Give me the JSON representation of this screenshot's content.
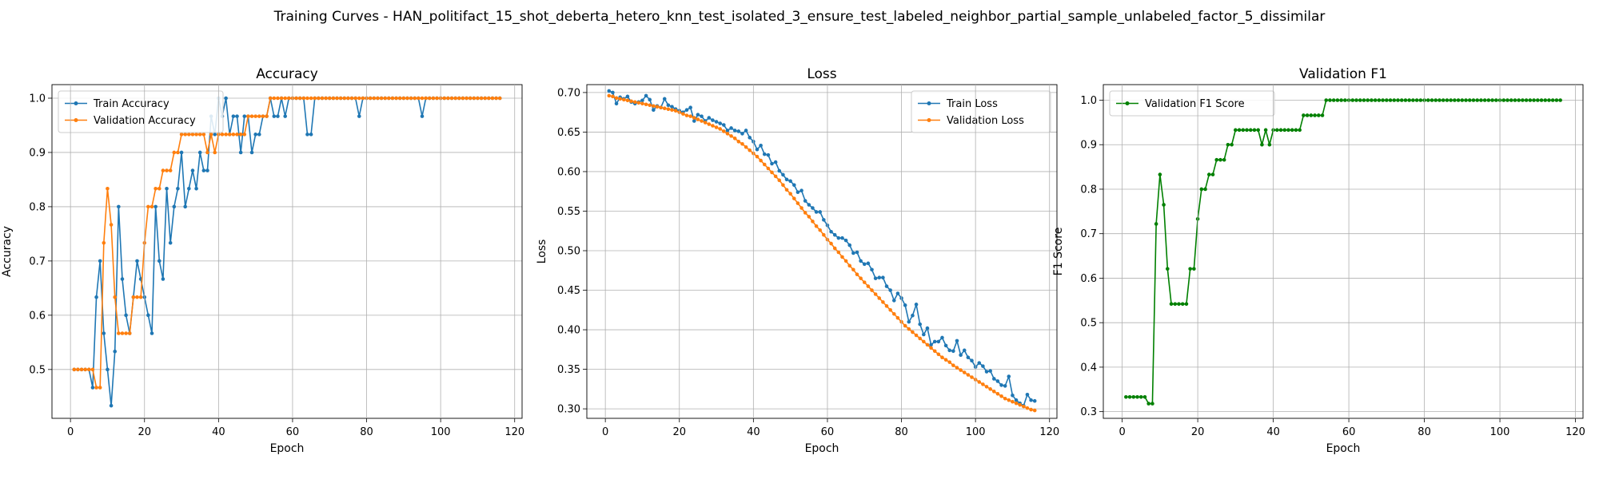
{
  "suptitle": "Training Curves - HAN_politifact_15_shot_deberta_hetero_knn_test_isolated_3_ensure_test_labeled_neighbor_partial_sample_unlabeled_factor_5_dissimilar",
  "chart_data": [
    {
      "type": "line",
      "title": "Accuracy",
      "xlabel": "Epoch",
      "ylabel": "Accuracy",
      "xlim": [
        -5,
        122
      ],
      "ylim": [
        0.41,
        1.025
      ],
      "xticks": [
        0,
        20,
        40,
        60,
        80,
        100,
        120
      ],
      "yticks": [
        0.5,
        0.6,
        0.7,
        0.8,
        0.9,
        1.0
      ],
      "ytick_format": 1,
      "grid": true,
      "legend": "upper-left",
      "series": [
        {
          "name": "Train Accuracy",
          "color": "#1f77b4",
          "x_start": 1,
          "values": [
            0.5,
            0.5,
            0.5,
            0.5,
            0.5,
            0.4667,
            0.6333,
            0.7,
            0.5667,
            0.5,
            0.4333,
            0.5333,
            0.8,
            0.6667,
            0.6,
            0.5667,
            0.6333,
            0.7,
            0.6667,
            0.6333,
            0.6,
            0.5667,
            0.8,
            0.7,
            0.6667,
            0.8333,
            0.7333,
            0.8,
            0.8333,
            0.9,
            0.8,
            0.8333,
            0.8667,
            0.8333,
            0.9,
            0.8667,
            0.8667,
            0.9667,
            0.9333,
            1.0,
            0.9667,
            1.0,
            0.9333,
            0.9667,
            0.9667,
            0.9,
            0.9667,
            0.9667,
            0.9,
            0.9333,
            0.9333,
            0.9667,
            0.9667,
            1.0,
            0.9667,
            0.9667,
            1.0,
            0.9667,
            1.0,
            1.0,
            1.0,
            1.0,
            1.0,
            0.9333,
            0.9333,
            1.0,
            1.0,
            1.0,
            1.0,
            1.0,
            1.0,
            1.0,
            1.0,
            1.0,
            1.0,
            1.0,
            1.0,
            0.9667,
            1.0,
            1.0,
            1.0,
            1.0,
            1.0,
            1.0,
            1.0,
            1.0,
            1.0,
            1.0,
            1.0,
            1.0,
            1.0,
            1.0,
            1.0,
            1.0,
            0.9667,
            1.0,
            1.0,
            1.0,
            1.0,
            1.0,
            1.0,
            1.0,
            1.0,
            1.0,
            1.0,
            1.0,
            1.0,
            1.0,
            1.0,
            1.0,
            1.0,
            1.0,
            1.0,
            1.0,
            1.0,
            1.0
          ]
        },
        {
          "name": "Validation Accuracy",
          "color": "#ff7f0e",
          "x_start": 1,
          "values": [
            0.5,
            0.5,
            0.5,
            0.5,
            0.5,
            0.5,
            0.4667,
            0.4667,
            0.7333,
            0.8333,
            0.7667,
            0.6333,
            0.5667,
            0.5667,
            0.5667,
            0.5667,
            0.6333,
            0.6333,
            0.6333,
            0.7333,
            0.8,
            0.8,
            0.8333,
            0.8333,
            0.8667,
            0.8667,
            0.8667,
            0.9,
            0.9,
            0.9333,
            0.9333,
            0.9333,
            0.9333,
            0.9333,
            0.9333,
            0.9333,
            0.9,
            0.9333,
            0.9,
            0.9333,
            0.9333,
            0.9333,
            0.9333,
            0.9333,
            0.9333,
            0.9333,
            0.9333,
            0.9667,
            0.9667,
            0.9667,
            0.9667,
            0.9667,
            0.9667,
            1.0,
            1.0,
            1.0,
            1.0,
            1.0,
            1.0,
            1.0,
            1.0,
            1.0,
            1.0,
            1.0,
            1.0,
            1.0,
            1.0,
            1.0,
            1.0,
            1.0,
            1.0,
            1.0,
            1.0,
            1.0,
            1.0,
            1.0,
            1.0,
            1.0,
            1.0,
            1.0,
            1.0,
            1.0,
            1.0,
            1.0,
            1.0,
            1.0,
            1.0,
            1.0,
            1.0,
            1.0,
            1.0,
            1.0,
            1.0,
            1.0,
            1.0,
            1.0,
            1.0,
            1.0,
            1.0,
            1.0,
            1.0,
            1.0,
            1.0,
            1.0,
            1.0,
            1.0,
            1.0,
            1.0,
            1.0,
            1.0,
            1.0,
            1.0,
            1.0,
            1.0,
            1.0,
            1.0
          ]
        }
      ]
    },
    {
      "type": "line",
      "title": "Loss",
      "xlabel": "Epoch",
      "ylabel": "Loss",
      "xlim": [
        -5,
        122
      ],
      "ylim": [
        0.288,
        0.71
      ],
      "xticks": [
        0,
        20,
        40,
        60,
        80,
        100,
        120
      ],
      "yticks": [
        0.3,
        0.35,
        0.4,
        0.45,
        0.5,
        0.55,
        0.6,
        0.65,
        0.7
      ],
      "ytick_format": 2,
      "grid": true,
      "legend": "upper-right",
      "series": [
        {
          "name": "Train Loss",
          "color": "#1f77b4",
          "x_start": 1,
          "values": [
            0.702,
            0.7,
            0.686,
            0.694,
            0.692,
            0.695,
            0.688,
            0.686,
            0.688,
            0.69,
            0.696,
            0.691,
            0.678,
            0.683,
            0.681,
            0.692,
            0.684,
            0.682,
            0.679,
            0.677,
            0.675,
            0.678,
            0.681,
            0.664,
            0.672,
            0.67,
            0.664,
            0.668,
            0.665,
            0.663,
            0.661,
            0.659,
            0.652,
            0.655,
            0.652,
            0.651,
            0.648,
            0.652,
            0.643,
            0.638,
            0.628,
            0.633,
            0.622,
            0.621,
            0.61,
            0.612,
            0.601,
            0.596,
            0.59,
            0.588,
            0.583,
            0.574,
            0.576,
            0.563,
            0.558,
            0.554,
            0.549,
            0.549,
            0.539,
            0.532,
            0.524,
            0.52,
            0.516,
            0.516,
            0.513,
            0.507,
            0.497,
            0.498,
            0.487,
            0.483,
            0.484,
            0.476,
            0.465,
            0.466,
            0.466,
            0.455,
            0.45,
            0.437,
            0.446,
            0.44,
            0.431,
            0.41,
            0.418,
            0.432,
            0.407,
            0.394,
            0.402,
            0.381,
            0.385,
            0.385,
            0.39,
            0.38,
            0.374,
            0.373,
            0.386,
            0.368,
            0.374,
            0.365,
            0.361,
            0.353,
            0.358,
            0.354,
            0.347,
            0.348,
            0.338,
            0.335,
            0.33,
            0.329,
            0.341,
            0.317,
            0.311,
            0.307,
            0.304,
            0.318,
            0.311,
            0.31
          ]
        },
        {
          "name": "Validation Loss",
          "color": "#ff7f0e",
          "x_start": 1,
          "values": [
            0.696,
            0.695,
            0.693,
            0.692,
            0.691,
            0.69,
            0.689,
            0.688,
            0.687,
            0.686,
            0.685,
            0.684,
            0.683,
            0.682,
            0.681,
            0.68,
            0.679,
            0.678,
            0.677,
            0.675,
            0.673,
            0.671,
            0.67,
            0.668,
            0.666,
            0.664,
            0.662,
            0.66,
            0.658,
            0.656,
            0.654,
            0.651,
            0.648,
            0.645,
            0.642,
            0.638,
            0.635,
            0.631,
            0.627,
            0.623,
            0.619,
            0.614,
            0.609,
            0.604,
            0.599,
            0.594,
            0.589,
            0.583,
            0.577,
            0.572,
            0.566,
            0.56,
            0.554,
            0.548,
            0.543,
            0.537,
            0.531,
            0.526,
            0.52,
            0.514,
            0.509,
            0.503,
            0.498,
            0.492,
            0.487,
            0.481,
            0.476,
            0.47,
            0.465,
            0.46,
            0.455,
            0.45,
            0.445,
            0.44,
            0.435,
            0.43,
            0.425,
            0.42,
            0.415,
            0.41,
            0.405,
            0.401,
            0.397,
            0.393,
            0.389,
            0.385,
            0.381,
            0.377,
            0.373,
            0.369,
            0.365,
            0.362,
            0.359,
            0.355,
            0.352,
            0.349,
            0.346,
            0.343,
            0.34,
            0.337,
            0.334,
            0.331,
            0.328,
            0.325,
            0.322,
            0.319,
            0.316,
            0.313,
            0.311,
            0.309,
            0.307,
            0.305,
            0.303,
            0.301,
            0.299,
            0.298
          ]
        }
      ]
    },
    {
      "type": "line",
      "title": "Validation F1",
      "xlabel": "Epoch",
      "ylabel": "F1 Score",
      "xlim": [
        -5,
        122
      ],
      "ylim": [
        0.285,
        1.035
      ],
      "xticks": [
        0,
        20,
        40,
        60,
        80,
        100,
        120
      ],
      "yticks": [
        0.3,
        0.4,
        0.5,
        0.6,
        0.7,
        0.8,
        0.9,
        1.0
      ],
      "ytick_format": 1,
      "grid": true,
      "legend": "upper-left",
      "series": [
        {
          "name": "Validation F1 Score",
          "color": "#008000",
          "x_start": 1,
          "values": [
            0.333,
            0.333,
            0.333,
            0.333,
            0.333,
            0.333,
            0.318,
            0.318,
            0.722,
            0.833,
            0.765,
            0.621,
            0.542,
            0.542,
            0.542,
            0.542,
            0.542,
            0.621,
            0.621,
            0.733,
            0.8,
            0.8,
            0.833,
            0.833,
            0.866,
            0.866,
            0.866,
            0.9,
            0.9,
            0.933,
            0.933,
            0.933,
            0.933,
            0.933,
            0.933,
            0.933,
            0.9,
            0.933,
            0.9,
            0.933,
            0.933,
            0.933,
            0.933,
            0.933,
            0.933,
            0.933,
            0.933,
            0.966,
            0.966,
            0.966,
            0.966,
            0.966,
            0.966,
            1.0,
            1.0,
            1.0,
            1.0,
            1.0,
            1.0,
            1.0,
            1.0,
            1.0,
            1.0,
            1.0,
            1.0,
            1.0,
            1.0,
            1.0,
            1.0,
            1.0,
            1.0,
            1.0,
            1.0,
            1.0,
            1.0,
            1.0,
            1.0,
            1.0,
            1.0,
            1.0,
            1.0,
            1.0,
            1.0,
            1.0,
            1.0,
            1.0,
            1.0,
            1.0,
            1.0,
            1.0,
            1.0,
            1.0,
            1.0,
            1.0,
            1.0,
            1.0,
            1.0,
            1.0,
            1.0,
            1.0,
            1.0,
            1.0,
            1.0,
            1.0,
            1.0,
            1.0,
            1.0,
            1.0,
            1.0,
            1.0,
            1.0,
            1.0,
            1.0,
            1.0,
            1.0,
            1.0
          ]
        }
      ]
    }
  ]
}
